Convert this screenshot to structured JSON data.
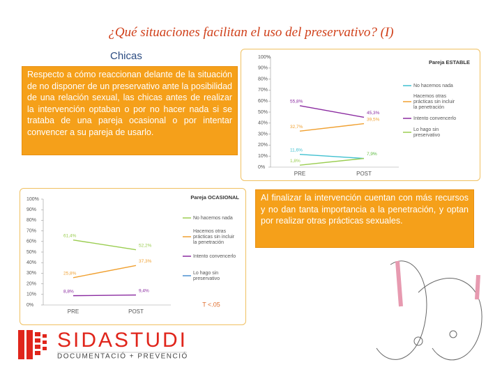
{
  "title": "¿Qué situaciones facilitan el uso del preservativo? (I)",
  "heading": "Chicas",
  "text_left": "Respecto a cómo reaccionan delante de la situación de no disponer de un preservativo ante la posibilidad de una relación sexual, las chicas antes de realizar la intervención optaban o por no hacer nada si se trataba de una pareja ocasional o por intentar convencer a su pareja de usarlo.",
  "text_right": "Al finalizar la intervención cuentan con más recursos y no dan tanta importancia a la penetración, y optan por realizar otras prácticas sexuales.",
  "logo": {
    "name": "SIDASTUDI",
    "tagline": "DOCUMENTACIÓ + PREVENCIÓ"
  },
  "chart_data": [
    {
      "type": "line",
      "title": "Pareja ESTABLE",
      "categories": [
        "PRE",
        "POST"
      ],
      "ylim": [
        0,
        100
      ],
      "yticks": [
        {
          "value": 0,
          "label": "0%"
        },
        {
          "value": 10,
          "label": "10%"
        },
        {
          "value": 20,
          "label": "20%"
        },
        {
          "value": 30,
          "label": "30%"
        },
        {
          "value": 40,
          "label": "40%"
        },
        {
          "value": 50,
          "label": "50%"
        },
        {
          "value": 60,
          "label": "60%"
        },
        {
          "value": 70,
          "label": "70%"
        },
        {
          "value": 80,
          "label": "80%"
        },
        {
          "value": 90,
          "label": "90%"
        },
        {
          "value": 100,
          "label": "100%"
        }
      ],
      "grid": false,
      "series": [
        {
          "name": "No hacemos nada",
          "color": "#3fc0d0",
          "values": [
            11.6,
            7.9
          ],
          "value_labels": [
            "11,6%",
            "7,9%"
          ]
        },
        {
          "name": "Hacemos otras prácticas sin incluir la penetración",
          "color": "#f0a030",
          "values": [
            32.7,
            39.5
          ],
          "value_labels": [
            "32,7%",
            "39,5%"
          ]
        },
        {
          "name": "Intento convencerlo",
          "color": "#8a2aa0",
          "values": [
            55.8,
            45.3
          ],
          "value_labels": [
            "55,8%",
            "45,3%"
          ]
        },
        {
          "name": "Lo hago sin preservativo",
          "color": "#9acd50",
          "values": [
            1.8,
            7.9
          ],
          "value_labels": [
            "1,8%",
            "7,9%"
          ]
        }
      ]
    },
    {
      "type": "line",
      "title": "Pareja OCASIONAL",
      "categories": [
        "PRE",
        "POST"
      ],
      "ylim": [
        0,
        100
      ],
      "yticks": [
        {
          "value": 0,
          "label": "0%"
        },
        {
          "value": 10,
          "label": "10%"
        },
        {
          "value": 20,
          "label": "20%"
        },
        {
          "value": 30,
          "label": "30%"
        },
        {
          "value": 40,
          "label": "40%"
        },
        {
          "value": 50,
          "label": "50%"
        },
        {
          "value": 60,
          "label": "60%"
        },
        {
          "value": 70,
          "label": "70%"
        },
        {
          "value": 80,
          "label": "80%"
        },
        {
          "value": 90,
          "label": "90%"
        },
        {
          "value": 100,
          "label": "100%"
        }
      ],
      "grid": false,
      "annotation": "T <.05",
      "series": [
        {
          "name": "No hacemos nada",
          "color": "#9acd50",
          "values": [
            61.4,
            52.2
          ],
          "value_labels": [
            "61,4%",
            "52,2%"
          ]
        },
        {
          "name": "Hacemos otras prácticas sin incluir la penetración",
          "color": "#f0a030",
          "values": [
            25.8,
            37.3
          ],
          "value_labels": [
            "25,8%",
            "37,3%"
          ]
        },
        {
          "name": "Intento convencerlo",
          "color": "#8a2aa0",
          "values": [
            8.8,
            9.4
          ],
          "value_labels": [
            "8,8%",
            "9,4%"
          ]
        },
        {
          "name": "Lo hago sin preservativo",
          "color": "#4a90d0",
          "values": [
            null,
            null
          ]
        }
      ]
    }
  ]
}
